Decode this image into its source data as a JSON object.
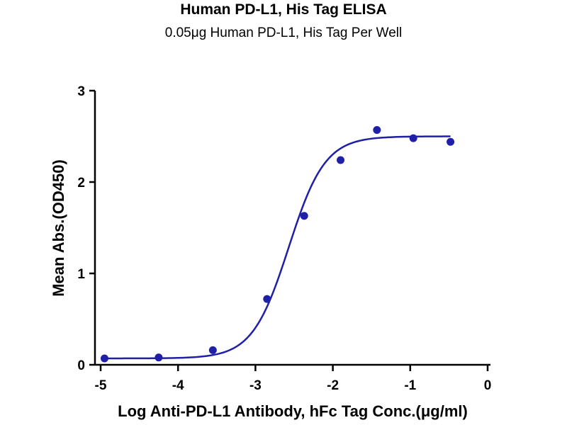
{
  "chart_data": {
    "type": "scatter",
    "title": "Human PD-L1, His Tag ELISA",
    "subtitle": "0.05μg Human PD-L1, His Tag Per Well",
    "xlabel": "Log Anti-PD-L1 Antibody, hFc Tag Conc.(μg/ml)",
    "ylabel": "Mean Abs.(OD450)",
    "xlim": [
      -5,
      0
    ],
    "ylim": [
      0,
      3
    ],
    "x_ticks": [
      "-5",
      "-4",
      "-3",
      "-2",
      "-1",
      "0"
    ],
    "y_ticks": [
      "0",
      "1",
      "2",
      "3"
    ],
    "x_tick_values": [
      -5,
      -4,
      -3,
      -2,
      -1,
      0
    ],
    "y_tick_values": [
      0,
      1,
      2,
      3
    ],
    "grid": false,
    "series": [
      {
        "x": [
          -4.95,
          -4.25,
          -3.55,
          -2.85,
          -2.37,
          -1.9,
          -1.43,
          -0.96,
          -0.48
        ],
        "y": [
          0.07,
          0.08,
          0.16,
          0.72,
          1.63,
          2.24,
          2.57,
          2.48,
          2.44
        ],
        "fit": {
          "model": "4PL",
          "bottom": 0.07,
          "top": 2.5,
          "logEC50": -2.57,
          "hill": 1.85
        }
      }
    ],
    "color": "#1f1fa8"
  }
}
